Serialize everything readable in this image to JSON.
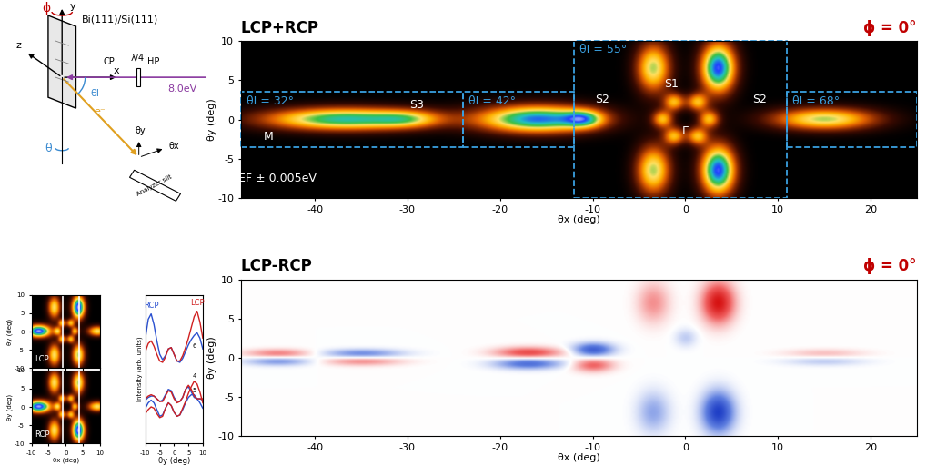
{
  "chart_data": [
    {
      "type": "heatmap",
      "title": "LCP+RCP",
      "subtitle": "ϕ = 0°",
      "x_label": "θx (deg)",
      "y_label": "θy (deg)",
      "xlim": [
        -48,
        25
      ],
      "ylim": [
        -10,
        10
      ],
      "xticks": [
        -40,
        -30,
        -20,
        -10,
        0,
        10,
        20
      ],
      "yticks": [
        -10,
        -5,
        0,
        5,
        10
      ],
      "zlim": [
        0,
        1
      ],
      "features": [
        [
          -37,
          0,
          6,
          1.0,
          0.75
        ],
        [
          -30,
          0,
          2.5,
          0.8,
          0.3
        ],
        [
          -16,
          0,
          4.5,
          1.2,
          0.85
        ],
        [
          -11,
          0,
          1.5,
          0.8,
          0.45
        ],
        [
          2.5,
          0,
          0.8,
          0.8,
          0.45
        ],
        [
          1.25,
          2.17,
          0.8,
          0.8,
          0.45
        ],
        [
          -1.25,
          2.17,
          0.8,
          0.8,
          0.45
        ],
        [
          -2.5,
          0,
          0.8,
          0.8,
          0.45
        ],
        [
          -1.25,
          -2.17,
          0.8,
          0.8,
          0.45
        ],
        [
          1.25,
          -2.17,
          0.8,
          0.8,
          0.45
        ],
        [
          3.5,
          6.5,
          1.3,
          2.2,
          0.9
        ],
        [
          -3.5,
          6.5,
          1.3,
          2.2,
          0.6
        ],
        [
          3.5,
          -6.5,
          1.3,
          2.2,
          0.9
        ],
        [
          -3.5,
          -6.5,
          1.3,
          2.2,
          0.6
        ],
        [
          15,
          0,
          4,
          1.0,
          0.6
        ]
      ],
      "regions": [
        {
          "label": "θI = 32°",
          "x": [
            -48,
            -24
          ],
          "y": [
            -3.5,
            3.5
          ]
        },
        {
          "label": "θI = 42°",
          "x": [
            -24,
            -12
          ],
          "y": [
            -3.5,
            3.5
          ]
        },
        {
          "label": "θI = 55°",
          "x": [
            -12,
            11
          ],
          "y": [
            -10,
            10
          ]
        },
        {
          "label": "θI = 68°",
          "x": [
            11,
            25
          ],
          "y": [
            -3.5,
            3.5
          ]
        }
      ],
      "annotations": [
        {
          "text": "S3",
          "x": -29,
          "y": 1.8
        },
        {
          "text": "M",
          "x": -45,
          "y": -2.2
        },
        {
          "text": "S2",
          "x": -9,
          "y": 2.5
        },
        {
          "text": "S1",
          "x": -1.5,
          "y": 4.5
        },
        {
          "text": "Γ",
          "x": 0,
          "y": -1.5
        },
        {
          "text": "S2",
          "x": 8,
          "y": 2.5
        },
        {
          "text": "EF ± 0.005eV",
          "x": -44,
          "y": -7.5
        }
      ]
    },
    {
      "type": "heatmap",
      "title": "LCP-RCP",
      "subtitle": "ϕ = 0°",
      "x_label": "θx (deg)",
      "y_label": "θy (deg)",
      "xlim": [
        -48,
        25
      ],
      "ylim": [
        -10,
        10
      ],
      "xticks": [
        -40,
        -30,
        -20,
        -10,
        0,
        10,
        20
      ],
      "yticks": [
        -10,
        -5,
        0,
        5,
        10
      ],
      "zlim": [
        -1,
        1
      ],
      "features": [
        [
          -44,
          0.5,
          2.5,
          0.4,
          0.4
        ],
        [
          -44,
          -0.5,
          2.5,
          0.4,
          -0.4
        ],
        [
          -35,
          0.5,
          3,
          0.4,
          -0.45
        ],
        [
          -35,
          -0.5,
          3,
          0.4,
          0.35
        ],
        [
          -17,
          0.6,
          2.5,
          0.5,
          0.6
        ],
        [
          -17,
          -0.8,
          2.5,
          0.5,
          -0.6
        ],
        [
          -10,
          1.0,
          1.5,
          0.6,
          -0.7
        ],
        [
          -10,
          -1.0,
          1.5,
          0.6,
          0.5
        ],
        [
          3.5,
          7,
          1.2,
          1.8,
          0.9
        ],
        [
          -3.5,
          7,
          1.2,
          1.8,
          0.35
        ],
        [
          3.5,
          -7,
          1.2,
          1.8,
          -0.9
        ],
        [
          -3.5,
          -7,
          1.2,
          1.8,
          -0.35
        ],
        [
          0,
          2.5,
          0.8,
          0.8,
          -0.2
        ],
        [
          15,
          0.5,
          3,
          0.4,
          0.2
        ],
        [
          15,
          -0.5,
          3,
          0.4,
          -0.2
        ]
      ]
    },
    {
      "type": "heatmap",
      "title": "LCP",
      "y_label": "θy (deg)",
      "xlim": [
        -10,
        10
      ],
      "ylim": [
        -10,
        10
      ],
      "xticks": [
        -10,
        -5,
        0,
        5,
        10
      ],
      "yticks": [
        -10,
        -5,
        0,
        5,
        10
      ],
      "zlim": [
        0,
        1
      ],
      "tick_labels": "y",
      "cut_lines": [
        -1,
        4
      ],
      "features": [
        [
          -8,
          0,
          2.5,
          1.2,
          0.95
        ],
        [
          2.5,
          0,
          0.8,
          0.8,
          0.45
        ],
        [
          -2.5,
          0,
          0.8,
          0.8,
          0.45
        ],
        [
          1.25,
          2.17,
          0.8,
          0.8,
          0.45
        ],
        [
          -1.25,
          2.17,
          0.8,
          0.8,
          0.45
        ],
        [
          1.25,
          -2.17,
          0.8,
          0.8,
          0.45
        ],
        [
          -1.25,
          -2.17,
          0.8,
          0.8,
          0.45
        ],
        [
          3.5,
          6.5,
          1.3,
          2.2,
          0.95
        ],
        [
          -3.5,
          6.5,
          1.3,
          2.2,
          0.55
        ],
        [
          3.5,
          -6.5,
          1.3,
          2.2,
          0.6
        ],
        [
          -3.5,
          -6.5,
          1.3,
          2.2,
          0.55
        ],
        [
          9,
          0,
          2,
          1.0,
          0.55
        ]
      ]
    },
    {
      "type": "heatmap",
      "title": "RCP",
      "x_label": "θx (deg)",
      "y_label": "θy (deg)",
      "xlim": [
        -10,
        10
      ],
      "ylim": [
        -10,
        10
      ],
      "xticks": [
        -10,
        -5,
        0,
        5,
        10
      ],
      "yticks": [
        -10,
        -5,
        0,
        5,
        10
      ],
      "zlim": [
        0,
        1
      ],
      "cut_lines": [
        -1,
        4
      ],
      "features": [
        [
          -8,
          0,
          2.5,
          1.2,
          0.95
        ],
        [
          2.5,
          0,
          0.8,
          0.8,
          0.45
        ],
        [
          -2.5,
          0,
          0.8,
          0.8,
          0.45
        ],
        [
          1.25,
          2.17,
          0.8,
          0.8,
          0.45
        ],
        [
          -1.25,
          2.17,
          0.8,
          0.8,
          0.45
        ],
        [
          1.25,
          -2.17,
          0.8,
          0.8,
          0.45
        ],
        [
          -1.25,
          -2.17,
          0.8,
          0.8,
          0.45
        ],
        [
          3.5,
          6.5,
          1.3,
          2.2,
          0.6
        ],
        [
          -3.5,
          6.5,
          1.3,
          2.2,
          0.55
        ],
        [
          3.5,
          -6.5,
          1.3,
          2.2,
          0.95
        ],
        [
          -3.5,
          -6.5,
          1.3,
          2.2,
          0.55
        ],
        [
          9,
          0,
          2,
          1.0,
          0.55
        ]
      ]
    },
    {
      "type": "line",
      "x_label": "θy (deg)",
      "y_label": "Intensity (arb. units)",
      "xlim": [
        -10,
        10
      ],
      "ylim": [
        0,
        11
      ],
      "xticks": [
        -10,
        -5,
        0,
        5,
        10
      ],
      "yticks": [],
      "tick_labels": "x",
      "x": [
        -10,
        -9,
        -8,
        -7,
        -6,
        -5,
        -4,
        -3,
        -2,
        -1,
        0,
        1,
        2,
        3,
        4,
        5,
        6,
        7,
        8,
        9,
        10
      ],
      "curve_labels": [
        "6",
        "5",
        "4"
      ],
      "series": [
        {
          "name": "RCP",
          "color": "#2a50d0",
          "values": [
            [
              7.8,
              9.2,
              9.6,
              8.8,
              7.6,
              6.6,
              6.2,
              6.5,
              7.0,
              7.1,
              6.6,
              6.1,
              6.0,
              6.3,
              6.8,
              7.3,
              7.7,
              8.0,
              8.2,
              7.8,
              7.0
            ],
            [
              3.2,
              3.4,
              3.5,
              3.5,
              3.3,
              3.1,
              3.2,
              3.6,
              4.0,
              3.9,
              3.4,
              3.1,
              3.1,
              3.4,
              4.0,
              4.2,
              3.8,
              3.4,
              3.3,
              3.3,
              3.2
            ],
            [
              2.6,
              3.0,
              3.2,
              3.0,
              2.5,
              2.0,
              2.1,
              2.6,
              3.0,
              2.8,
              2.3,
              2.0,
              2.1,
              2.5,
              3.0,
              3.4,
              3.6,
              3.6,
              3.3,
              3.0,
              2.6
            ]
          ]
        },
        {
          "name": "LCP",
          "color": "#d02020",
          "values": [
            [
              6.8,
              7.4,
              7.6,
              7.2,
              6.6,
              6.1,
              6.0,
              6.4,
              7.0,
              7.1,
              6.6,
              6.1,
              6.1,
              6.5,
              7.1,
              7.8,
              8.6,
              9.4,
              9.8,
              9.0,
              7.8
            ],
            [
              3.3,
              3.5,
              3.6,
              3.5,
              3.3,
              3.1,
              3.1,
              3.5,
              3.9,
              3.8,
              3.3,
              3.0,
              3.1,
              3.4,
              4.0,
              4.3,
              4.0,
              3.5,
              3.3,
              3.3,
              3.3
            ],
            [
              2.2,
              2.5,
              2.7,
              2.6,
              2.2,
              1.9,
              2.0,
              2.6,
              3.0,
              2.8,
              2.3,
              2.0,
              2.1,
              2.6,
              3.1,
              3.7,
              4.2,
              4.6,
              4.4,
              3.8,
              3.0
            ]
          ]
        }
      ]
    }
  ],
  "diagram": {
    "labels": {
      "phi": "ϕ",
      "y": "y",
      "sample": "Bi(111)/Si(111)",
      "x": "x",
      "z": "z",
      "theta_i": "θI",
      "cp": "CP",
      "qwp": "λ/4",
      "hp": "HP",
      "energy": "8.0eV",
      "electron": "e⁻",
      "theta": "θ",
      "theta_y": "θy",
      "theta_x": "θx",
      "slit": "Analyzer slit"
    }
  }
}
